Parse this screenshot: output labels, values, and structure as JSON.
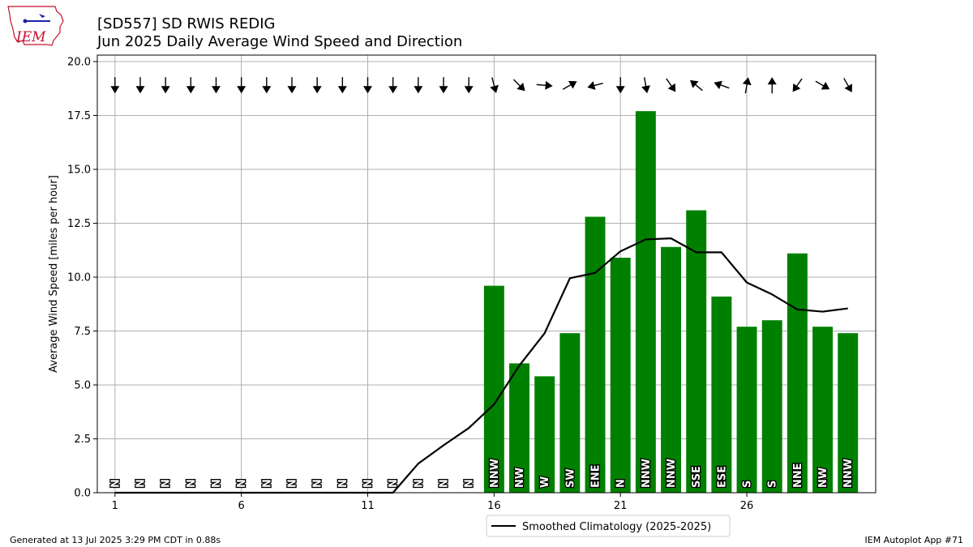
{
  "header": {
    "title_line1": "[SD557] SD RWIS REDIG",
    "title_line2": "Jun 2025 Daily Average Wind Speed and Direction",
    "logo_text": "IEM"
  },
  "footer": {
    "generated": "Generated at 13 Jul 2025 3:29 PM CDT in 0.88s",
    "app": "IEM Autoplot App #71"
  },
  "colors": {
    "bar": "#008000",
    "line": "#000000",
    "grid": "#b0b0b0",
    "logo_red": "#c8102e",
    "logo_blue": "#1f1fa8"
  },
  "chart_data": {
    "type": "bar",
    "ylabel": "Average Wind Speed [miles per hour]",
    "xlim": [
      0.3,
      31.1
    ],
    "ylim": [
      0,
      20.3
    ],
    "xticks": [
      1,
      6,
      11,
      16,
      26
    ],
    "xtick_labels": [
      "1",
      "6",
      "11",
      "16",
      "26"
    ],
    "xtick_extra_labels": [
      {
        "x": 21,
        "label": "21"
      }
    ],
    "yticks": [
      0,
      2.5,
      5,
      7.5,
      10,
      12.5,
      15,
      17.5,
      20
    ],
    "ytick_labels": [
      "0.0",
      "2.5",
      "5.0",
      "7.5",
      "10.0",
      "12.5",
      "15.0",
      "17.5",
      "20.0"
    ],
    "grid": true,
    "days": [
      1,
      2,
      3,
      4,
      5,
      6,
      7,
      8,
      9,
      10,
      11,
      12,
      13,
      14,
      15,
      16,
      17,
      18,
      19,
      20,
      21,
      22,
      23,
      24,
      25,
      26,
      27,
      28,
      29,
      30
    ],
    "speeds": [
      0,
      0,
      0,
      0,
      0,
      0,
      0,
      0,
      0,
      0,
      0,
      0,
      0,
      0,
      0,
      9.6,
      6.0,
      5.4,
      7.4,
      12.8,
      10.9,
      17.7,
      11.4,
      13.1,
      9.1,
      7.7,
      8.0,
      11.1,
      7.7,
      7.4
    ],
    "directions": [
      "N",
      "N",
      "N",
      "N",
      "N",
      "N",
      "N",
      "N",
      "N",
      "N",
      "N",
      "N",
      "N",
      "N",
      "N",
      "NNW",
      "NW",
      "W",
      "SW",
      "ENE",
      "N",
      "NNW",
      "NNW",
      "SSE",
      "ESE",
      "S",
      "S",
      "NNE",
      "NW",
      "NNW"
    ],
    "arrow_headings_deg": [
      180,
      180,
      180,
      180,
      180,
      180,
      180,
      180,
      180,
      180,
      180,
      180,
      180,
      180,
      180,
      165,
      135,
      95,
      60,
      255,
      180,
      170,
      145,
      310,
      290,
      10,
      0,
      215,
      120,
      150
    ],
    "climatology_name": "Smoothed Climatology (2025-2025)",
    "climatology": [
      0,
      0,
      0,
      0,
      0,
      0,
      0,
      0,
      0,
      0,
      0,
      0,
      1.35,
      2.2,
      3.0,
      4.1,
      5.9,
      7.4,
      9.95,
      10.2,
      11.2,
      11.75,
      11.8,
      11.15,
      11.15,
      9.75,
      9.2,
      8.5,
      8.4,
      8.55
    ],
    "legend_position": "bottom-center"
  }
}
